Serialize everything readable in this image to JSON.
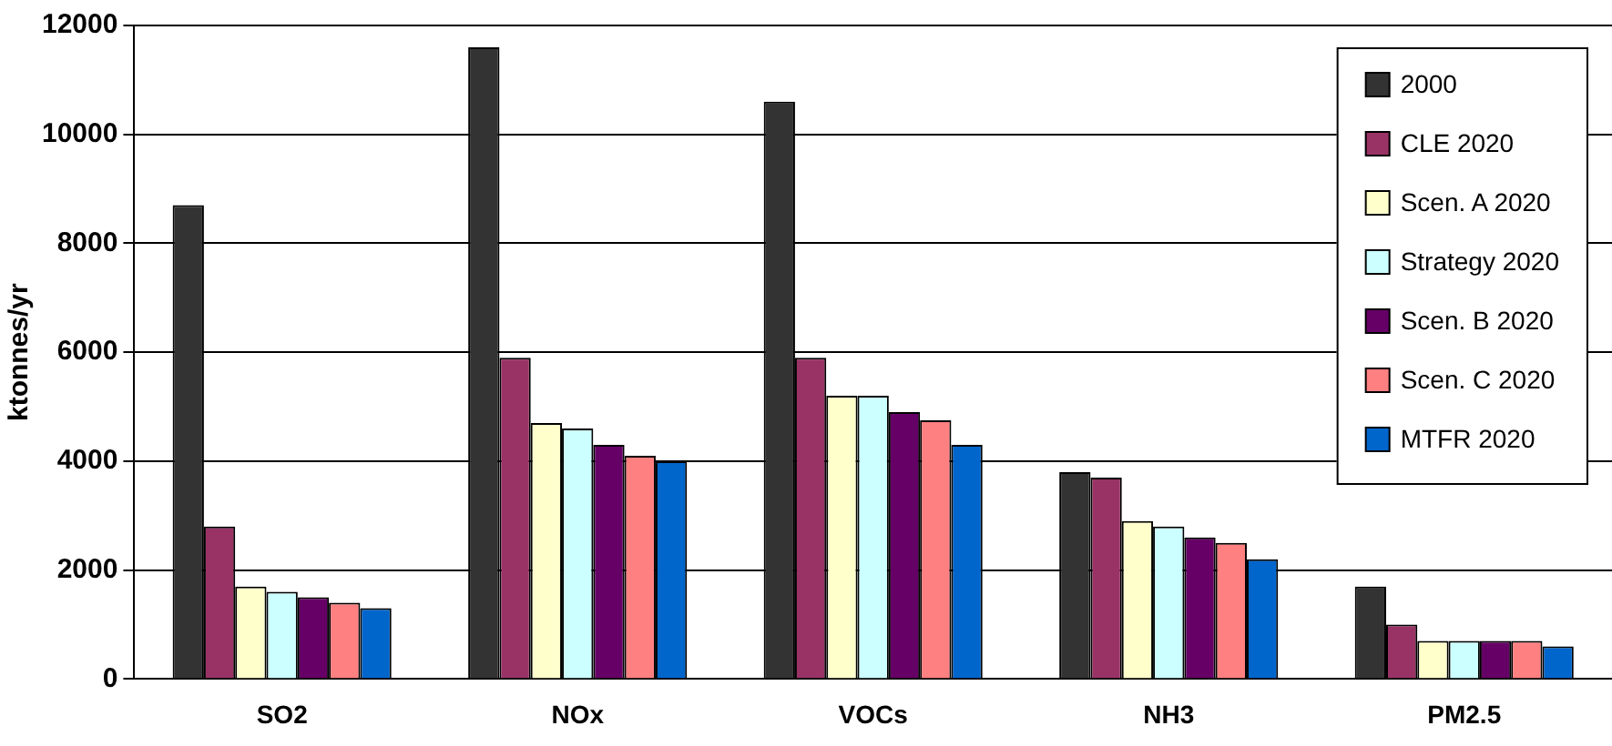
{
  "chart_data": {
    "type": "bar",
    "ylabel": "ktonnes/yr",
    "categories": [
      "SO2",
      "NOx",
      "VOCs",
      "NH3",
      "PM2.5"
    ],
    "series": [
      {
        "name": "2000",
        "color": "#333333",
        "values": [
          8700,
          11600,
          10600,
          3800,
          1700
        ]
      },
      {
        "name": "CLE 2020",
        "color": "#993366",
        "values": [
          2800,
          5900,
          5900,
          3700,
          1000
        ]
      },
      {
        "name": "Scen. A 2020",
        "color": "#ffffcc",
        "values": [
          1700,
          4700,
          5200,
          2900,
          700
        ]
      },
      {
        "name": "Strategy 2020",
        "color": "#ccffff",
        "values": [
          1600,
          4600,
          5200,
          2800,
          700
        ]
      },
      {
        "name": "Scen. B 2020",
        "color": "#660066",
        "values": [
          1500,
          4300,
          4900,
          2600,
          700
        ]
      },
      {
        "name": "Scen. C 2020",
        "color": "#ff8080",
        "values": [
          1400,
          4100,
          4750,
          2500,
          700
        ]
      },
      {
        "name": "MTFR 2020",
        "color": "#0066cc",
        "values": [
          1300,
          4000,
          4300,
          2200,
          600
        ]
      }
    ],
    "ylim": [
      0,
      12000
    ],
    "yticks": [
      0,
      2000,
      4000,
      6000,
      8000,
      10000,
      12000
    ],
    "grid": "y",
    "legend": "top right"
  }
}
